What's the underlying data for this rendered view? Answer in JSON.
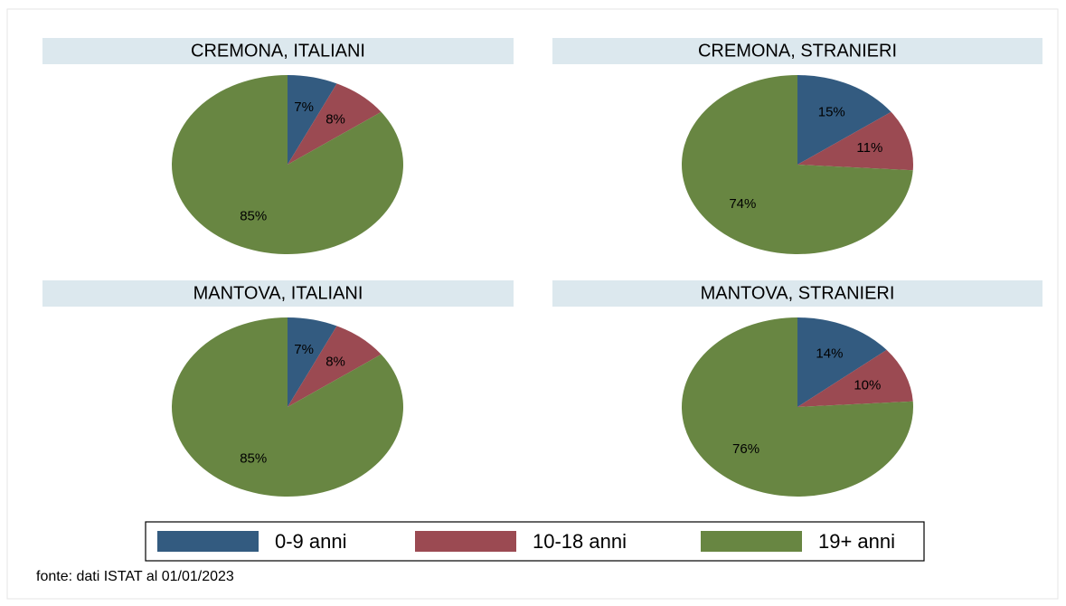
{
  "chart_data": [
    {
      "type": "pie",
      "title": "CREMONA, ITALIANI",
      "values": [
        7,
        8,
        85
      ],
      "value_labels": [
        "7%",
        "8%",
        "85%"
      ]
    },
    {
      "type": "pie",
      "title": "CREMONA, STRANIERI",
      "values": [
        15,
        11,
        74
      ],
      "value_labels": [
        "15%",
        "11%",
        "74%"
      ]
    },
    {
      "type": "pie",
      "title": "MANTOVA, ITALIANI",
      "values": [
        7,
        8,
        85
      ],
      "value_labels": [
        "7%",
        "8%",
        "85%"
      ]
    },
    {
      "type": "pie",
      "title": "MANTOVA, STRANIERI",
      "values": [
        14,
        10,
        76
      ],
      "value_labels": [
        "14%",
        "10%",
        "76%"
      ]
    }
  ],
  "legend": {
    "labels": [
      "0-9 anni",
      "10-18 anni",
      "19+ anni"
    ],
    "colors": [
      "#335b80",
      "#9b4a52",
      "#688642"
    ]
  },
  "note": "fonte: dati ISTAT al 01/01/2023"
}
